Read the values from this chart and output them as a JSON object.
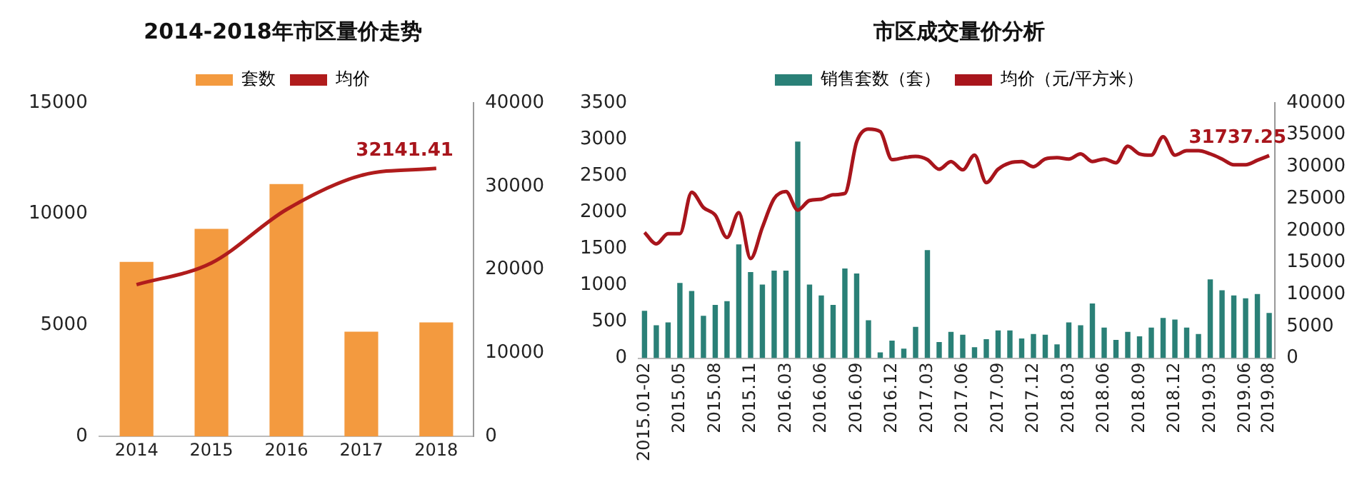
{
  "chart_data": [
    {
      "type": "bar",
      "title": "2014-2018年市区量价走势",
      "categories": [
        "2014",
        "2015",
        "2016",
        "2017",
        "2018"
      ],
      "series": [
        {
          "name": "套数",
          "color": "#f39a3f",
          "values": [
            7850,
            9330,
            11350,
            4710,
            5130
          ]
        },
        {
          "name": "均价",
          "type": "line",
          "axis": "y2",
          "color": "#b01c1c",
          "values": [
            18200,
            20800,
            27200,
            31300,
            32141.41
          ]
        }
      ],
      "ylim": [
        0,
        15000
      ],
      "yticks": [
        0,
        5000,
        10000,
        15000
      ],
      "y2lim": [
        0,
        40000
      ],
      "y2ticks": [
        0,
        10000,
        20000,
        30000,
        40000
      ],
      "grid": false,
      "legend": "top",
      "marker": "none",
      "annotations": [
        "32141.41"
      ]
    },
    {
      "type": "bar",
      "title": "市区成交量价分析",
      "categories": [
        "2015.01-02",
        null,
        null,
        "2015.05",
        null,
        null,
        "2015.08",
        null,
        null,
        "2015.11",
        null,
        null,
        "2016.03",
        null,
        null,
        "2016.06",
        null,
        null,
        "2016.09",
        null,
        null,
        "2016.12",
        null,
        null,
        "2017.03",
        null,
        null,
        "2017.06",
        null,
        null,
        "2017.09",
        null,
        null,
        "2017.12",
        null,
        null,
        "2018.03",
        null,
        null,
        "2018.06",
        null,
        null,
        "2018.09",
        null,
        null,
        "2018.12",
        null,
        null,
        "2019.03",
        null,
        null,
        "2019.06",
        null,
        "2019.08"
      ],
      "series": [
        {
          "name": "销售套数（套）",
          "color": "#2a8077",
          "values": [
            650,
            450,
            490,
            1030,
            920,
            580,
            730,
            780,
            1560,
            1180,
            1010,
            1200,
            1200,
            2970,
            1010,
            860,
            730,
            1230,
            1160,
            520,
            80,
            240,
            130,
            430,
            1480,
            220,
            360,
            320,
            150,
            260,
            380,
            380,
            270,
            330,
            320,
            190,
            490,
            450,
            750,
            420,
            250,
            360,
            300,
            420,
            550,
            530,
            420,
            330,
            1080,
            930,
            860,
            820,
            880,
            620
          ]
        },
        {
          "name": "均价（元/平方米）",
          "type": "line",
          "axis": "y2",
          "color": "#a8151c",
          "values": [
            19700,
            17900,
            19500,
            19500,
            26000,
            23600,
            22400,
            18900,
            22800,
            15600,
            20500,
            25000,
            26100,
            23200,
            24700,
            24900,
            25600,
            25800,
            33900,
            35900,
            35500,
            31100,
            31400,
            31600,
            31100,
            29600,
            30800,
            29500,
            31800,
            27500,
            29600,
            30600,
            30800,
            30000,
            31200,
            31400,
            31200,
            32000,
            30800,
            31200,
            30600,
            33200,
            32000,
            31800,
            34700,
            31800,
            32500,
            32500,
            32000,
            31200,
            30300,
            30300,
            31000,
            31737.25
          ]
        }
      ],
      "ylim": [
        0,
        3500
      ],
      "yticks": [
        0,
        500,
        1000,
        1500,
        2000,
        2500,
        3000,
        3500
      ],
      "y2lim": [
        0,
        40000
      ],
      "y2ticks": [
        0,
        5000,
        10000,
        15000,
        20000,
        25000,
        30000,
        35000,
        40000
      ],
      "grid": false,
      "legend": "top",
      "marker": "none",
      "annotations": [
        "31737.25"
      ]
    }
  ]
}
